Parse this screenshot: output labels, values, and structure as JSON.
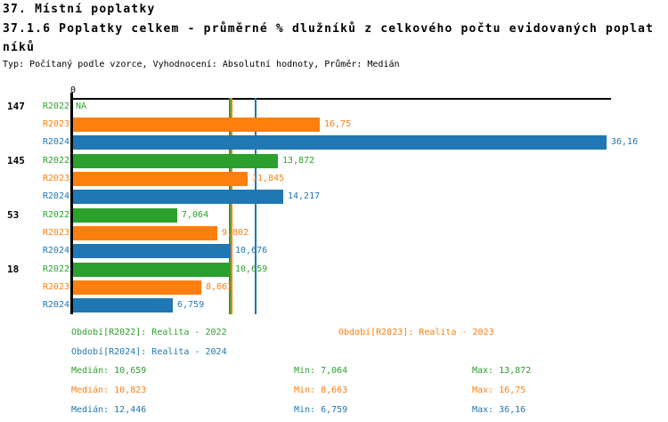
{
  "header": {
    "title": "37. Místní poplatky",
    "subtitle_line1": "37.1.6 Poplatky celkem - průměrné % dlužníků z celkového počtu evidovaných poplat",
    "subtitle_line2": "níků",
    "meta": "Typ: Počítaný podle vzorce, Vyhodnocení: Absolutní hodnoty, Průměr: Medián"
  },
  "chart_data": {
    "type": "bar",
    "orientation": "horizontal",
    "title": "37.1.6 Poplatky celkem - průměrné % dlužníků z celkového počtu evidovaných poplatníků",
    "x_axis": {
      "zero_label": "0",
      "xlim": [
        0,
        36.5
      ],
      "gridlines": false
    },
    "na_text": "NA",
    "series": [
      {
        "id": "R2022",
        "legend": "Období[R2022]: Realita - 2022",
        "color": "#2ca02c",
        "median": 10.659,
        "min": 7.064,
        "max": 13.872
      },
      {
        "id": "R2023",
        "legend": "Období[R2023]: Realita - 2023",
        "color": "#ff7f0e",
        "median": 10.823,
        "min": 8.663,
        "max": 16.75
      },
      {
        "id": "R2024",
        "legend": "Období[R2024]: Realita - 2024",
        "color": "#1f77b4",
        "median": 12.446,
        "min": 6.759,
        "max": 36.16
      }
    ],
    "groups": [
      {
        "label": "147",
        "values": [
          {
            "series": "R2022",
            "value": null,
            "display": "NA"
          },
          {
            "series": "R2023",
            "value": 16.75,
            "display": "16,75"
          },
          {
            "series": "R2024",
            "value": 36.16,
            "display": "36,16"
          }
        ]
      },
      {
        "label": "145",
        "values": [
          {
            "series": "R2022",
            "value": 13.872,
            "display": "13,872"
          },
          {
            "series": "R2023",
            "value": 11.845,
            "display": "11,845"
          },
          {
            "series": "R2024",
            "value": 14.217,
            "display": "14,217"
          }
        ]
      },
      {
        "label": "53",
        "values": [
          {
            "series": "R2022",
            "value": 7.064,
            "display": "7,064"
          },
          {
            "series": "R2023",
            "value": 9.802,
            "display": "9,802"
          },
          {
            "series": "R2024",
            "value": 10.676,
            "display": "10,676"
          }
        ]
      },
      {
        "label": "18",
        "values": [
          {
            "series": "R2022",
            "value": 10.659,
            "display": "10,659"
          },
          {
            "series": "R2023",
            "value": 8.663,
            "display": "8,663"
          },
          {
            "series": "R2024",
            "value": 6.759,
            "display": "6,759"
          }
        ]
      }
    ],
    "median_lines": [
      {
        "series": "R2022",
        "value": 10.659
      },
      {
        "series": "R2023",
        "value": 10.823
      },
      {
        "series": "R2024",
        "value": 12.446
      }
    ]
  },
  "legend": {
    "items": [
      {
        "series": "R2022",
        "text": "Období[R2022]: Realita - 2022"
      },
      {
        "series": "R2023",
        "text": "Období[R2023]: Realita - 2023"
      },
      {
        "series": "R2024",
        "text": "Období[R2024]: Realita - 2024"
      }
    ]
  },
  "stats": {
    "rows": [
      {
        "series": "R2022",
        "cells": [
          "Medián: 10,659",
          "Min: 7,064",
          "Max: 13,872"
        ]
      },
      {
        "series": "R2023",
        "cells": [
          "Medián: 10,823",
          "Min: 8,663",
          "Max: 16,75"
        ]
      },
      {
        "series": "R2024",
        "cells": [
          "Medián: 12,446",
          "Min: 6,759",
          "Max: 36,16"
        ]
      }
    ]
  }
}
